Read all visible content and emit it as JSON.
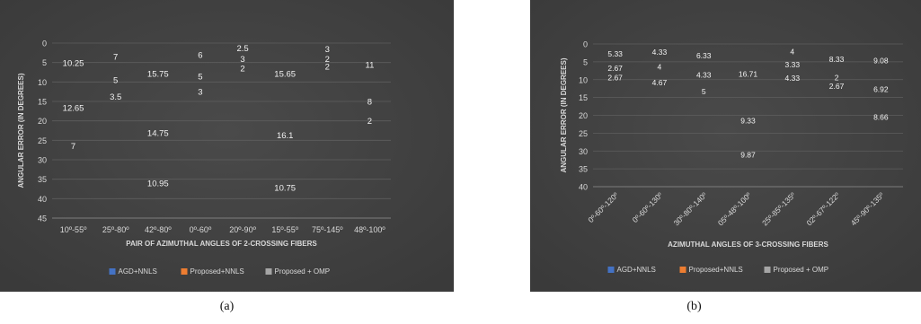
{
  "figure": {
    "captions": [
      "(a)",
      "(b)"
    ]
  },
  "colors": {
    "background_outer": "#3a3a3a",
    "background_inner": "#4a4a4a",
    "grid": "#5e5e5e",
    "axis_text": "#d9d9d9",
    "series": [
      "#4472c4",
      "#ed7d31",
      "#a5a5a5"
    ]
  },
  "chart_data": [
    {
      "type": "bar",
      "stacked": true,
      "title": "",
      "xlabel": "PAIR OF AZIMUTHAL ANGLES OF 2-CROSSING FIBERS",
      "ylabel": "ANGULAR ERROR (IN DEGREES)",
      "ylim": [
        0,
        45
      ],
      "yticks": [
        0,
        5,
        10,
        15,
        20,
        25,
        30,
        35,
        40,
        45
      ],
      "grid": true,
      "legend": "bottom",
      "categories": [
        "10º-55º",
        "25º-80º",
        "42º-80º",
        "0º-60º",
        "20º-90º",
        "15º-55º",
        "75º-145º",
        "48º-100º"
      ],
      "series": [
        {
          "name": "AGD+NNLS",
          "values": [
            10.25,
            7,
            15.75,
            6,
            2.5,
            15.65,
            3,
            11
          ],
          "labels": [
            "10.25",
            "7",
            "15.75",
            "6",
            "2.5",
            "15.65",
            "3",
            "11"
          ]
        },
        {
          "name": "Proposed+NNLS",
          "values": [
            12.65,
            5,
            14.75,
            5,
            3,
            16.1,
            2,
            8
          ],
          "labels": [
            "12.65",
            "5",
            "14.75",
            "5",
            "3",
            "16.1",
            "2",
            "8"
          ]
        },
        {
          "name": "Proposed + OMP",
          "values": [
            7,
            3.5,
            10.95,
            3,
            2,
            10.75,
            2,
            2
          ],
          "labels": [
            "7",
            "3.5",
            "10.95",
            "3",
            "2",
            "10.75",
            "2",
            "2"
          ]
        }
      ]
    },
    {
      "type": "bar",
      "stacked": true,
      "title": "",
      "xlabel": "AZIMUTHAL ANGLES OF 3-CROSSING FIBERS",
      "ylabel": "ANGULAR ERROR (IN DEGREES)",
      "ylim": [
        0,
        40
      ],
      "yticks": [
        0,
        5,
        10,
        15,
        20,
        25,
        30,
        35,
        40
      ],
      "grid": true,
      "legend": "bottom",
      "categories": [
        "0º-60º-120º",
        "0º-60º-130º",
        "30º-80º-140º",
        "05º-48º-100º",
        "25º-85º-135º",
        "02º-67º-122º",
        "45º-90º-135º"
      ],
      "series": [
        {
          "name": "AGD+NNLS",
          "values": [
            5.33,
            4.33,
            6.33,
            16.71,
            4,
            8.33,
            9.08
          ],
          "labels": [
            "5.33",
            "4.33",
            "6.33",
            "16.71",
            "4",
            "8.33",
            "9.08"
          ]
        },
        {
          "name": "Proposed+NNLS",
          "values": [
            2.67,
            4,
            4.33,
            9.33,
            3.33,
            2,
            6.92
          ],
          "labels": [
            "2.67",
            "4",
            "4.33",
            "9.33",
            "3.33",
            "2",
            "6.92"
          ]
        },
        {
          "name": "Proposed + OMP",
          "values": [
            2.67,
            4.67,
            5,
            9.87,
            4.33,
            2.67,
            8.66
          ],
          "labels": [
            "2.67",
            "4.67",
            "5",
            "9.87",
            "4.33",
            "2.67",
            "8.66"
          ]
        }
      ]
    }
  ]
}
